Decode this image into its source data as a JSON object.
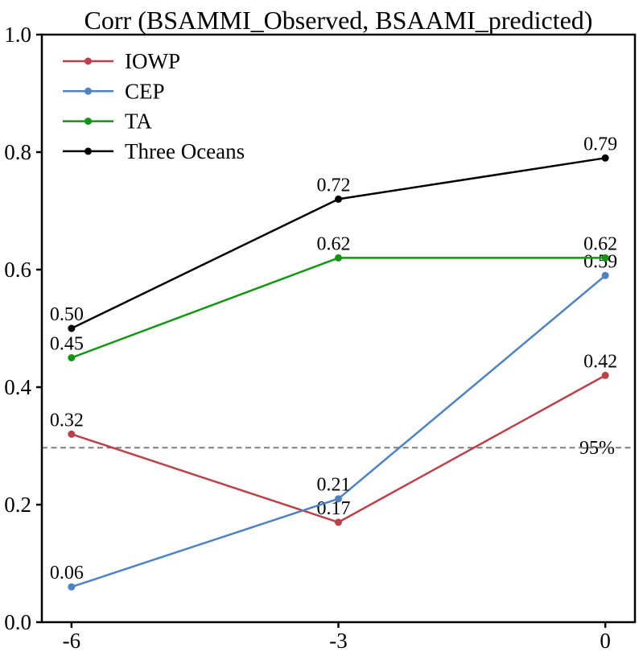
{
  "chart_data": {
    "type": "line",
    "title": "Corr (BSAMMI_Observed, BSAAMI_predicted)",
    "x": [
      -6,
      -3,
      0
    ],
    "x_tick_labels": [
      "-6",
      "-3",
      "0"
    ],
    "y_ticks": [
      0.0,
      0.2,
      0.4,
      0.6,
      0.8,
      1.0
    ],
    "y_tick_labels": [
      "0.0",
      "0.2",
      "0.4",
      "0.6",
      "0.8",
      "1.0"
    ],
    "xlim": [
      -6,
      0
    ],
    "ylim": [
      0,
      1
    ],
    "grid": false,
    "legend_position": "upper-left",
    "series": [
      {
        "name": "IOWP",
        "color": "#bc4049",
        "values": [
          0.32,
          0.17,
          0.42
        ],
        "labels": [
          "0.32",
          "0.17",
          "0.42"
        ]
      },
      {
        "name": "CEP",
        "color": "#4d82c3",
        "values": [
          0.06,
          0.21,
          0.59
        ],
        "labels": [
          "0.06",
          "0.21",
          "0.59"
        ]
      },
      {
        "name": "TA",
        "color": "#129612",
        "values": [
          0.45,
          0.62,
          0.62
        ],
        "labels": [
          "0.45",
          "0.62",
          "0.62"
        ]
      },
      {
        "name": "Three Oceans",
        "color": "#000000",
        "values": [
          0.5,
          0.72,
          0.79
        ],
        "labels": [
          "0.50",
          "0.72",
          "0.79"
        ]
      }
    ],
    "threshold": {
      "value": 0.297,
      "label": "95%",
      "color": "#7f7f7f",
      "style": "dashed"
    }
  }
}
